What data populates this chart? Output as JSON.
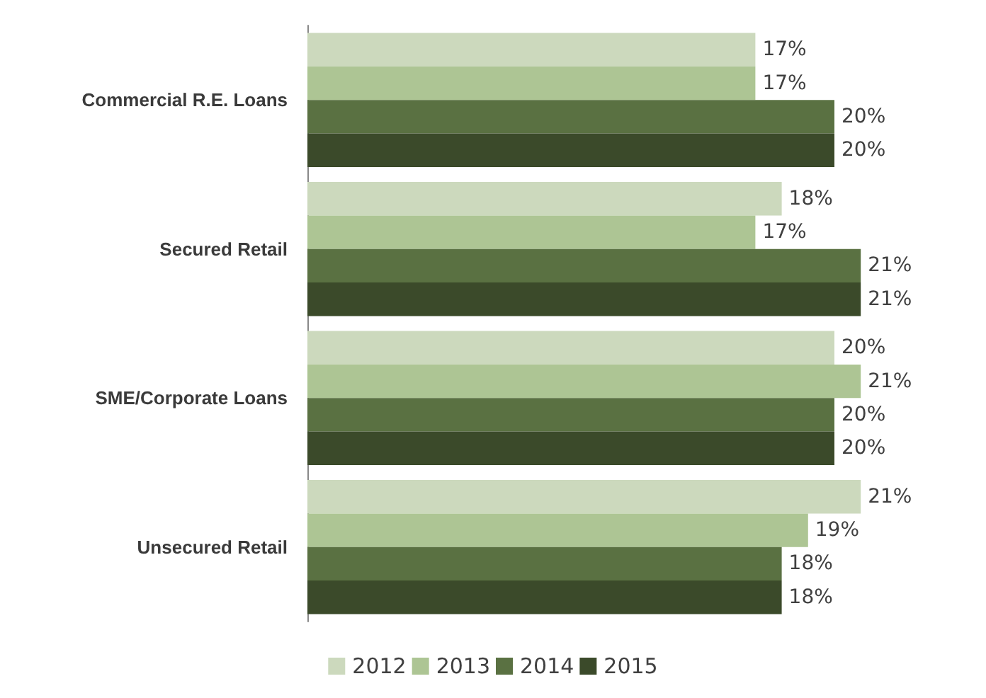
{
  "chart_data": {
    "type": "bar",
    "orientation": "horizontal",
    "categories": [
      "Commercial R.E. Loans",
      "Secured Retail",
      "SME/Corporate Loans",
      "Unsecured Retail"
    ],
    "series": [
      {
        "name": "2012",
        "color": "#ccd9bd",
        "values": [
          17,
          18,
          20,
          21
        ],
        "value_labels": [
          "17%",
          "18%",
          "20%",
          "21%"
        ]
      },
      {
        "name": "2013",
        "color": "#adc594",
        "values": [
          17,
          17,
          21,
          19
        ],
        "value_labels": [
          "17%",
          "17%",
          "21%",
          "19%"
        ]
      },
      {
        "name": "2014",
        "color": "#5a7142",
        "values": [
          20,
          21,
          20,
          18
        ],
        "value_labels": [
          "20%",
          "21%",
          "20%",
          "18%"
        ]
      },
      {
        "name": "2015",
        "color": "#3b4a2a",
        "values": [
          20,
          21,
          20,
          18
        ],
        "value_labels": [
          "20%",
          "21%",
          "20%",
          "18%"
        ]
      }
    ],
    "grid": false,
    "legend": "bottom",
    "tick_labels": "y"
  }
}
